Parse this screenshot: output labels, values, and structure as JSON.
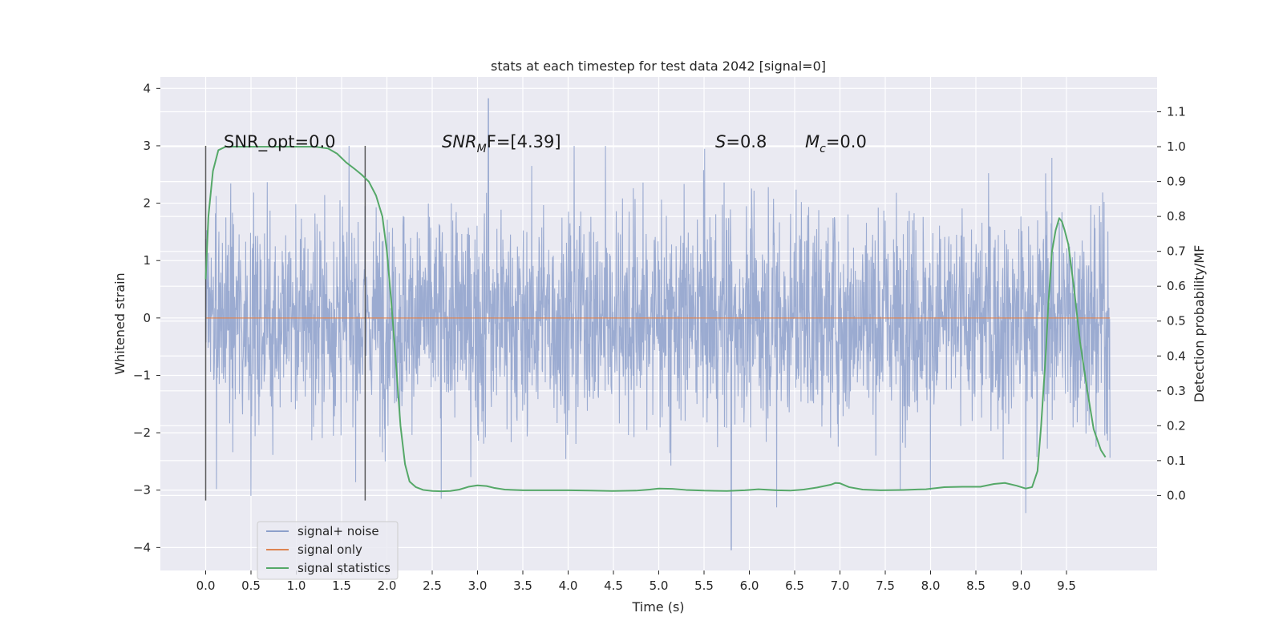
{
  "chart_data": {
    "type": "line",
    "title": "stats at each timestep for test data 2042 [signal=0]",
    "xlabel": "Time (s)",
    "ylabel": "Whitened strain",
    "y2label": "Detection probability/MF",
    "xlim": [
      -0.5,
      10.5
    ],
    "ylim": [
      -4.4,
      4.2
    ],
    "y2lim": [
      -0.215,
      1.2
    ],
    "x_ticks": [
      "0.0",
      "0.5",
      "1.0",
      "1.5",
      "2.0",
      "2.5",
      "3.0",
      "3.5",
      "4.0",
      "4.5",
      "5.0",
      "5.5",
      "6.0",
      "6.5",
      "7.0",
      "7.5",
      "8.0",
      "8.5",
      "9.0",
      "9.5"
    ],
    "y_ticks": [
      "−4",
      "−3",
      "−2",
      "−1",
      "0",
      "1",
      "2",
      "3",
      "4"
    ],
    "y2_ticks": [
      "0.0",
      "0.1",
      "0.2",
      "0.3",
      "0.4",
      "0.5",
      "0.6",
      "0.7",
      "0.8",
      "0.9",
      "1.0",
      "1.1"
    ],
    "grid": true,
    "legend_position": "lower-left",
    "colors": {
      "background": "#eaeaf2",
      "grid": "#ffffff",
      "noise": "#8da0cb",
      "signal": "#dd8452",
      "statistics": "#55a868",
      "markers": "#404040"
    },
    "annotations": {
      "snr_opt": "SNR_opt=0.0",
      "snr_mf_base": "SNR",
      "snr_mf_sub": "M",
      "snr_mf_rest": "F=[4.39]",
      "s_sym": "S",
      "s_rest": "=0.8",
      "mc_sym": "M",
      "mc_sub": "c",
      "mc_rest": "=0.0"
    },
    "markers_x": [
      0.0,
      1.76
    ],
    "series": [
      {
        "name": "signal+ noise",
        "x_range": [
          0.0,
          9.98
        ],
        "envelope": {
          "typical_abs": 1.8,
          "peaks": [
            [
              3.12,
              3.82
            ],
            [
              5.8,
              -4.04
            ],
            [
              9.05,
              -3.4
            ],
            [
              0.5,
              -3.1
            ],
            [
              2.6,
              -3.15
            ],
            [
              8.0,
              -3.0
            ],
            [
              6.3,
              -3.3
            ]
          ]
        }
      },
      {
        "name": "signal only",
        "x": [
          0.0,
          9.98
        ],
        "y": [
          0.0,
          0.0
        ]
      },
      {
        "name": "signal statistics",
        "axis": "right",
        "x": [
          0.0,
          0.03,
          0.08,
          0.14,
          0.22,
          0.35,
          0.55,
          0.8,
          1.0,
          1.2,
          1.35,
          1.45,
          1.55,
          1.65,
          1.72,
          1.8,
          1.88,
          1.95,
          2.0,
          2.05,
          2.1,
          2.15,
          2.2,
          2.25,
          2.32,
          2.4,
          2.5,
          2.6,
          2.7,
          2.8,
          2.9,
          3.0,
          3.1,
          3.18,
          3.3,
          3.5,
          3.75,
          4.0,
          4.25,
          4.5,
          4.75,
          4.9,
          5.0,
          5.15,
          5.3,
          5.5,
          5.75,
          5.95,
          6.1,
          6.3,
          6.45,
          6.6,
          6.75,
          6.9,
          6.95,
          7.0,
          7.1,
          7.25,
          7.45,
          7.7,
          7.95,
          8.15,
          8.35,
          8.55,
          8.7,
          8.82,
          8.95,
          9.05,
          9.12,
          9.18,
          9.22,
          9.27,
          9.3,
          9.34,
          9.38,
          9.42,
          9.45,
          9.48,
          9.52,
          9.58,
          9.65,
          9.73,
          9.8,
          9.88,
          9.93
        ],
        "y": [
          0.62,
          0.8,
          0.93,
          0.99,
          1.0,
          1.0,
          1.0,
          1.0,
          1.0,
          1.0,
          0.995,
          0.98,
          0.955,
          0.935,
          0.92,
          0.9,
          0.86,
          0.8,
          0.7,
          0.55,
          0.38,
          0.2,
          0.09,
          0.04,
          0.024,
          0.016,
          0.013,
          0.012,
          0.013,
          0.017,
          0.025,
          0.029,
          0.027,
          0.022,
          0.017,
          0.015,
          0.015,
          0.015,
          0.014,
          0.013,
          0.014,
          0.017,
          0.02,
          0.019,
          0.016,
          0.014,
          0.013,
          0.015,
          0.018,
          0.015,
          0.014,
          0.017,
          0.023,
          0.031,
          0.036,
          0.035,
          0.024,
          0.017,
          0.015,
          0.016,
          0.018,
          0.024,
          0.025,
          0.025,
          0.033,
          0.036,
          0.028,
          0.02,
          0.024,
          0.07,
          0.2,
          0.4,
          0.55,
          0.7,
          0.76,
          0.795,
          0.785,
          0.76,
          0.72,
          0.6,
          0.44,
          0.3,
          0.19,
          0.13,
          0.11
        ]
      }
    ]
  }
}
